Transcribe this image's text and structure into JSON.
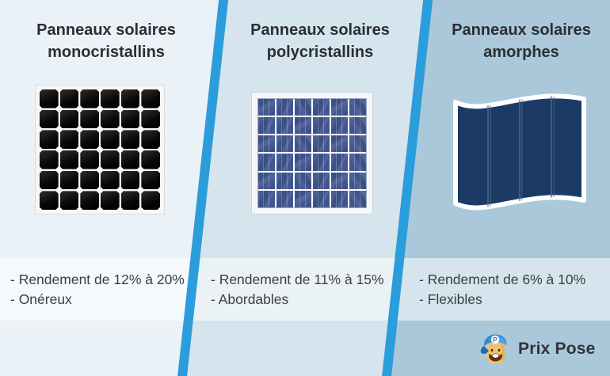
{
  "columns": [
    {
      "title_line1": "Panneaux solaires",
      "title_line2": "monocristallins",
      "feature1": "- Rendement de 12% à 20%",
      "feature2": "- Onéreux",
      "panel_type": "monocrystalline"
    },
    {
      "title_line1": "Panneaux solaires",
      "title_line2": "polycristallins",
      "feature1": "- Rendement de 11% à 15%",
      "feature2": "- Abordables",
      "panel_type": "polycrystalline"
    },
    {
      "title_line1": "Panneaux solaires",
      "title_line2": "amorphes",
      "feature1": "- Rendement de 6% à 10%",
      "feature2": "- Flexibles",
      "panel_type": "amorphous"
    }
  ],
  "logo": {
    "text": "Prix Pose",
    "badge_letter": "P"
  },
  "colors": {
    "accent_stripe": "#2b9ddb",
    "col1_bg": "#ebf2f7",
    "col2_bg": "#d6e4ed",
    "col3_bg": "#aac8da",
    "mono_cell": "#0b0b0b",
    "poly_cell": "#3c5187",
    "amorphous_fill": "#1c3a66",
    "title_text": "#2b2e34",
    "body_text": "#3b3e42"
  }
}
